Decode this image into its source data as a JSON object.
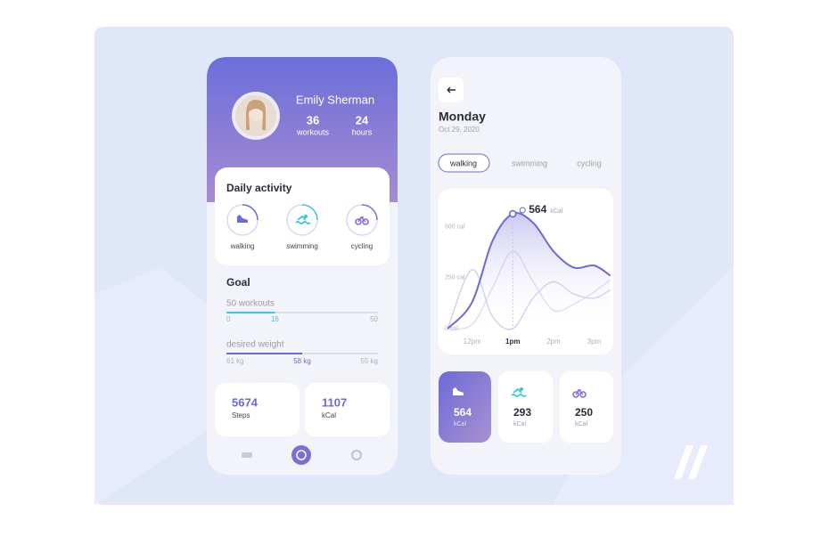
{
  "profile": {
    "name": "Emily Sherman",
    "stats": [
      {
        "value": 36,
        "label": "workouts"
      },
      {
        "value": 24,
        "label": "hours"
      }
    ]
  },
  "daily_activity": {
    "title": "Daily activity",
    "items": [
      "walking",
      "swimming",
      "cycling"
    ]
  },
  "goal": {
    "title": "Goal",
    "workouts": {
      "label": "50 workouts",
      "min": 0,
      "current": 16,
      "max": 50
    },
    "weight": {
      "label": "desired weight",
      "start": {
        "value": 61,
        "label": "61 kg"
      },
      "current": {
        "value": 58,
        "label": "58 kg"
      },
      "target": {
        "value": 55,
        "label": "55 kg"
      }
    }
  },
  "summary": [
    {
      "value": 5674,
      "label": "Steps"
    },
    {
      "value": 1107,
      "label": "kCal"
    }
  ],
  "day": {
    "title": "Monday",
    "date": "Oct 29, 2020"
  },
  "tabs": [
    "walking",
    "swimming",
    "cycling"
  ],
  "chart_data": {
    "type": "line",
    "x": [
      11.4,
      12,
      12.5,
      13,
      13.5,
      14,
      14.5,
      15,
      15.4
    ],
    "series": [
      {
        "color": "#6a6ad8",
        "values": [
          0,
          130,
          430,
          564,
          520,
          380,
          300,
          310,
          260
        ]
      },
      {
        "color": "#cfcbf0",
        "values": [
          0,
          290,
          60,
          0,
          150,
          230,
          170,
          150,
          190
        ]
      },
      {
        "color": "#dcd8f4",
        "values": [
          0,
          20,
          200,
          380,
          230,
          90,
          120,
          180,
          240
        ]
      }
    ],
    "xlim": [
      11.35,
      15.45
    ],
    "ylim": [
      0,
      630
    ],
    "xticks": [
      {
        "value": 12,
        "label": "12pm"
      },
      {
        "value": 13,
        "label": "1pm"
      },
      {
        "value": 14,
        "label": "2pm"
      },
      {
        "value": 15,
        "label": "3pm"
      }
    ],
    "yticks": [
      {
        "value": 0,
        "label": "0 cal"
      },
      {
        "value": 250,
        "label": "250 cal"
      },
      {
        "value": 500,
        "label": "500 cal"
      }
    ],
    "annotation": {
      "value": 564,
      "label": "kCal"
    }
  },
  "activity_totals": [
    {
      "value": 564,
      "label": "kCal"
    },
    {
      "value": 293,
      "label": "kCal"
    },
    {
      "value": 250,
      "label": "kCal"
    }
  ]
}
